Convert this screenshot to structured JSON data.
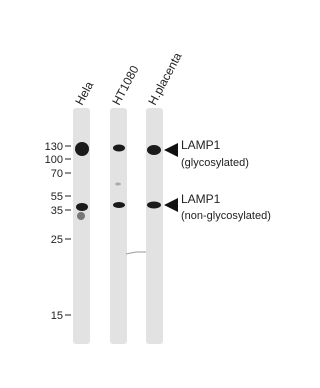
{
  "lanes": [
    {
      "label": "Hela"
    },
    {
      "label": "HT1080"
    },
    {
      "label": "H.placenta"
    }
  ],
  "markers": [
    130,
    100,
    70,
    55,
    35,
    25,
    15
  ],
  "annotations": [
    {
      "name": "LAMP1",
      "note": "(glycosylated)"
    },
    {
      "name": "LAMP1",
      "note": "(non-glycosylated)"
    }
  ]
}
